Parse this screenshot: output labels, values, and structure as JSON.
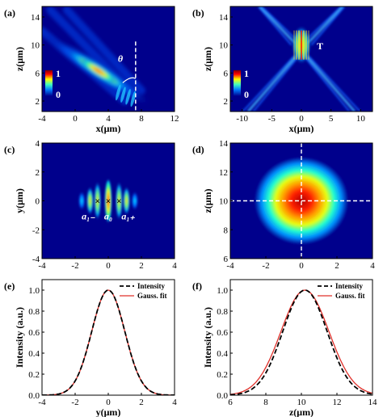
{
  "panels": [
    {
      "id": "a",
      "label": "(a)",
      "type": "heatmap",
      "xlabel": "x(μm)",
      "ylabel": "z(μm)",
      "xlim": [
        -4,
        12
      ],
      "ylim": [
        0.5,
        15.5
      ],
      "xticks": [
        "-4",
        "0",
        "4",
        "8",
        "12"
      ],
      "xtick_values": [
        -4,
        0,
        4,
        8,
        12
      ],
      "yticks": [
        "2",
        "6",
        "10",
        "14"
      ],
      "ytick_values": [
        2,
        6,
        10,
        14
      ],
      "annotations": [
        "θ"
      ],
      "colorbar": {
        "max": "1",
        "min": "0"
      },
      "beam": "tilted",
      "angle_x": 7.3
    },
    {
      "id": "b",
      "label": "(b)",
      "type": "heatmap",
      "xlabel": "x(μm)",
      "ylabel": "z(μm)",
      "xlim": [
        -12,
        12
      ],
      "ylim": [
        0.5,
        15.5
      ],
      "xticks": [
        "-10",
        "-5",
        "0",
        "5",
        "10"
      ],
      "xtick_values": [
        -10,
        -5,
        0,
        5,
        10
      ],
      "yticks": [
        "2",
        "6",
        "10",
        "14"
      ],
      "ytick_values": [
        2,
        6,
        10,
        14
      ],
      "annotations": [
        "T"
      ],
      "colorbar": {
        "max": "1",
        "min": "0"
      },
      "beam": "cross"
    },
    {
      "id": "c",
      "label": "(c)",
      "type": "heatmap",
      "xlabel": "",
      "ylabel": "y(μm)",
      "xlim": [
        -4,
        4
      ],
      "ylim": [
        -4,
        4
      ],
      "xticks": [
        "-4",
        "-2",
        "0",
        "2",
        "4"
      ],
      "xtick_values": [
        -4,
        -2,
        0,
        2,
        4
      ],
      "yticks": [
        "-4",
        "-2",
        "0",
        "2",
        "4"
      ],
      "ytick_values": [
        -4,
        -2,
        0,
        2,
        4
      ],
      "annotations": [
        "a₁₋",
        "a₀",
        "a₁₊"
      ],
      "beam": "fringes"
    },
    {
      "id": "d",
      "label": "(d)",
      "type": "heatmap",
      "xlabel": "",
      "ylabel": "z(μm)",
      "xlim": [
        -4,
        4
      ],
      "ylim": [
        6,
        14
      ],
      "xticks": [
        "-4",
        "-2",
        "0",
        "2",
        "4"
      ],
      "xtick_values": [
        -4,
        -2,
        0,
        2,
        4
      ],
      "yticks": [
        "6",
        "8",
        "10",
        "12",
        "14"
      ],
      "ytick_values": [
        6,
        8,
        10,
        12,
        14
      ],
      "beam": "spot",
      "crosshair": [
        0,
        10
      ]
    },
    {
      "id": "e",
      "label": "(e)",
      "type": "line",
      "xlabel": "y(μm)",
      "ylabel": "Intensity (a.u.)",
      "xlim": [
        -4,
        4
      ],
      "ylim": [
        0,
        1.1
      ],
      "xticks": [
        "-4",
        "-2",
        "0",
        "2",
        "4"
      ],
      "xtick_values": [
        -4,
        -2,
        0,
        2,
        4
      ],
      "yticks": [
        "0.0",
        "0.2",
        "0.4",
        "0.6",
        "0.8",
        "1.0"
      ],
      "ytick_values": [
        0,
        0.2,
        0.4,
        0.6,
        0.8,
        1.0
      ],
      "legend": [
        "Intensity",
        "Gauss. fit"
      ],
      "center": 0,
      "sigma": 1.0,
      "fit_sigma": 1.0
    },
    {
      "id": "f",
      "label": "(f)",
      "type": "line",
      "xlabel": "z(μm)",
      "ylabel": "Intensity (a.u.)",
      "xlim": [
        6,
        14
      ],
      "ylim": [
        0,
        1.1
      ],
      "xticks": [
        "6",
        "8",
        "10",
        "12",
        "14"
      ],
      "xtick_values": [
        6,
        8,
        10,
        12,
        14
      ],
      "yticks": [
        "0.0",
        "0.2",
        "0.4",
        "0.6",
        "0.8",
        "1.0"
      ],
      "ytick_values": [
        0,
        0.2,
        0.4,
        0.6,
        0.8,
        1.0
      ],
      "legend": [
        "Intensity",
        "Gauss. fit"
      ],
      "center": 10.2,
      "sigma": 1.25,
      "fit_sigma": 1.35
    }
  ],
  "chart_data": [
    {
      "type": "line",
      "title": "(e)",
      "xlabel": "y(μm)",
      "ylabel": "Intensity (a.u.)",
      "xlim": [
        -4,
        4
      ],
      "ylim": [
        0,
        1.1
      ],
      "x": [
        -4,
        -3,
        -2,
        -1.5,
        -1,
        -0.5,
        0,
        0.5,
        1,
        1.5,
        2,
        3,
        4
      ],
      "series": [
        {
          "name": "Intensity",
          "values": [
            0.0,
            0.01,
            0.13,
            0.32,
            0.6,
            0.88,
            1.0,
            0.88,
            0.6,
            0.32,
            0.13,
            0.01,
            0.0
          ]
        },
        {
          "name": "Gauss. fit",
          "values": [
            0.0,
            0.01,
            0.13,
            0.32,
            0.6,
            0.88,
            1.0,
            0.88,
            0.6,
            0.32,
            0.13,
            0.01,
            0.0
          ]
        }
      ]
    },
    {
      "type": "line",
      "title": "(f)",
      "xlabel": "z(μm)",
      "ylabel": "Intensity (a.u.)",
      "xlim": [
        6,
        14
      ],
      "ylim": [
        0,
        1.1
      ],
      "x": [
        6,
        7,
        8,
        9,
        10,
        10.2,
        11,
        12,
        13,
        14
      ],
      "series": [
        {
          "name": "Intensity",
          "values": [
            0.02,
            0.04,
            0.2,
            0.62,
            0.99,
            1.0,
            0.82,
            0.35,
            0.06,
            0.0
          ]
        },
        {
          "name": "Gauss. fit",
          "values": [
            0.01,
            0.06,
            0.26,
            0.66,
            0.99,
            1.0,
            0.84,
            0.4,
            0.11,
            0.02
          ]
        }
      ]
    }
  ]
}
